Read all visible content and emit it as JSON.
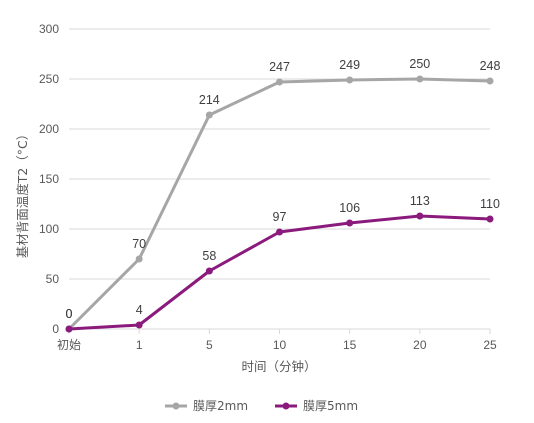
{
  "chart_data": {
    "type": "line",
    "categories": [
      "初始",
      "1",
      "5",
      "10",
      "15",
      "20",
      "25"
    ],
    "series": [
      {
        "name": "膜厚2mm",
        "values": [
          0,
          70,
          214,
          247,
          249,
          250,
          248
        ],
        "color": "#a6a6a6"
      },
      {
        "name": "膜厚5mm",
        "values": [
          0,
          4,
          58,
          97,
          106,
          113,
          110
        ],
        "color": "#8b1a7d"
      }
    ],
    "xlabel": "时间（分钟）",
    "ylabel": "基材背面温度T2（°C）",
    "ylim": [
      0,
      300
    ],
    "yticks": [
      0,
      50,
      100,
      150,
      200,
      250,
      300
    ],
    "grid": true,
    "legend": "bottom",
    "axis_color": "#d9d9d9",
    "grid_color": "#d9d9d9"
  }
}
